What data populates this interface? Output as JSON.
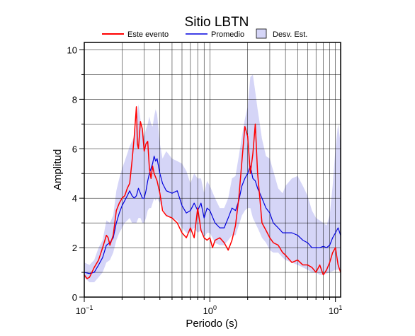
{
  "chart_data": {
    "type": "line",
    "title": "Sitio LBTN",
    "xlabel": "Periodo (s)",
    "ylabel": "Amplitud",
    "xscale": "log",
    "xlim": [
      0.1,
      11
    ],
    "ylim": [
      0,
      10.3
    ],
    "grid": true,
    "legend_position": "top",
    "x_ticks": [
      {
        "value": 0.1,
        "base": "10",
        "exp": "−1"
      },
      {
        "value": 1,
        "base": "10",
        "exp": "0"
      },
      {
        "value": 10,
        "base": "10",
        "exp": "1"
      }
    ],
    "y_ticks": [
      0,
      2,
      4,
      6,
      8,
      10
    ],
    "legend": {
      "event_label": "Este evento",
      "mean_label": "Promedio",
      "std_label": "Desv. Est."
    },
    "colors": {
      "event": "#ff0000",
      "mean": "#0000dd",
      "std_fill": "#d5d5f7"
    },
    "series": [
      {
        "name": "Este evento",
        "x": [
          0.1,
          0.105,
          0.11,
          0.115,
          0.12,
          0.13,
          0.14,
          0.15,
          0.155,
          0.16,
          0.17,
          0.18,
          0.19,
          0.2,
          0.21,
          0.22,
          0.23,
          0.24,
          0.25,
          0.26,
          0.265,
          0.27,
          0.28,
          0.29,
          0.3,
          0.31,
          0.32,
          0.33,
          0.34,
          0.35,
          0.36,
          0.38,
          0.4,
          0.42,
          0.45,
          0.5,
          0.55,
          0.6,
          0.65,
          0.7,
          0.75,
          0.8,
          0.85,
          0.9,
          0.95,
          1.0,
          1.05,
          1.1,
          1.2,
          1.3,
          1.4,
          1.5,
          1.6,
          1.7,
          1.8,
          1.9,
          2.0,
          2.1,
          2.2,
          2.3,
          2.4,
          2.5,
          2.6,
          2.8,
          3.0,
          3.2,
          3.5,
          3.8,
          4.0,
          4.5,
          5.0,
          5.5,
          6.0,
          6.5,
          7.0,
          7.5,
          8.0,
          8.5,
          9.0,
          9.5,
          10.0,
          10.5,
          11.0
        ],
        "y": [
          0.9,
          0.75,
          0.8,
          1.0,
          1.2,
          1.5,
          2.0,
          2.5,
          2.4,
          2.1,
          2.5,
          3.5,
          3.8,
          4.0,
          4.1,
          4.4,
          4.6,
          5.5,
          6.5,
          7.7,
          6.2,
          6.0,
          7.1,
          6.8,
          5.9,
          6.2,
          6.3,
          5.2,
          4.8,
          5.3,
          5.0,
          4.7,
          4.2,
          3.5,
          3.3,
          3.2,
          3.0,
          2.6,
          2.4,
          2.8,
          2.4,
          3.6,
          2.7,
          2.4,
          2.3,
          2.4,
          2.0,
          2.3,
          2.4,
          2.2,
          1.9,
          2.3,
          2.9,
          4.0,
          5.5,
          6.9,
          6.5,
          5.0,
          5.8,
          7.0,
          5.0,
          4.0,
          3.0,
          2.7,
          2.4,
          2.2,
          2.1,
          1.8,
          1.7,
          1.4,
          1.5,
          1.3,
          1.3,
          1.2,
          1.0,
          1.3,
          0.9,
          1.1,
          1.4,
          1.8,
          2.0,
          1.3,
          1.0
        ]
      },
      {
        "name": "Promedio",
        "x": [
          0.1,
          0.11,
          0.12,
          0.13,
          0.14,
          0.15,
          0.16,
          0.17,
          0.18,
          0.19,
          0.2,
          0.21,
          0.22,
          0.23,
          0.24,
          0.25,
          0.26,
          0.27,
          0.28,
          0.29,
          0.3,
          0.31,
          0.32,
          0.33,
          0.34,
          0.35,
          0.36,
          0.37,
          0.38,
          0.4,
          0.42,
          0.45,
          0.5,
          0.55,
          0.6,
          0.65,
          0.7,
          0.75,
          0.8,
          0.85,
          0.9,
          0.95,
          1.0,
          1.1,
          1.2,
          1.3,
          1.4,
          1.5,
          1.6,
          1.7,
          1.8,
          1.9,
          2.0,
          2.1,
          2.2,
          2.3,
          2.4,
          2.5,
          2.6,
          2.8,
          3.0,
          3.2,
          3.5,
          3.8,
          4.0,
          4.5,
          5.0,
          5.5,
          6.0,
          6.5,
          7.0,
          7.5,
          8.0,
          8.5,
          9.0,
          9.5,
          10.0,
          10.5,
          11.0
        ],
        "y": [
          1.0,
          0.95,
          1.0,
          1.3,
          1.6,
          2.1,
          2.2,
          2.4,
          3.0,
          3.4,
          3.7,
          3.9,
          4.1,
          4.3,
          4.1,
          4.0,
          4.1,
          4.4,
          4.2,
          4.0,
          4.0,
          4.3,
          4.7,
          5.0,
          5.2,
          5.4,
          5.7,
          5.5,
          5.6,
          5.0,
          4.6,
          4.3,
          4.2,
          4.3,
          3.7,
          3.4,
          3.5,
          3.8,
          3.5,
          3.8,
          3.2,
          3.6,
          3.5,
          3.0,
          2.8,
          2.8,
          3.2,
          3.6,
          3.5,
          3.9,
          4.5,
          4.8,
          5.0,
          5.3,
          4.8,
          4.7,
          4.4,
          4.2,
          4.0,
          3.6,
          3.4,
          3.0,
          2.8,
          2.6,
          2.6,
          2.6,
          2.5,
          2.3,
          2.2,
          2.0,
          2.0,
          2.0,
          2.05,
          2.0,
          2.1,
          2.4,
          2.6,
          2.8,
          2.5
        ]
      },
      {
        "name": "Desv. Est.",
        "x": [
          0.1,
          0.11,
          0.12,
          0.13,
          0.14,
          0.15,
          0.16,
          0.17,
          0.18,
          0.19,
          0.2,
          0.21,
          0.22,
          0.23,
          0.24,
          0.25,
          0.26,
          0.27,
          0.28,
          0.29,
          0.3,
          0.31,
          0.32,
          0.33,
          0.34,
          0.35,
          0.36,
          0.37,
          0.38,
          0.4,
          0.42,
          0.45,
          0.5,
          0.55,
          0.6,
          0.65,
          0.7,
          0.75,
          0.8,
          0.85,
          0.9,
          0.95,
          1.0,
          1.1,
          1.2,
          1.3,
          1.4,
          1.5,
          1.6,
          1.7,
          1.8,
          1.9,
          2.0,
          2.1,
          2.2,
          2.3,
          2.4,
          2.5,
          2.6,
          2.8,
          3.0,
          3.2,
          3.5,
          3.8,
          4.0,
          4.5,
          5.0,
          5.5,
          6.0,
          6.5,
          7.0,
          7.5,
          8.0,
          8.5,
          9.0,
          9.5,
          10.0,
          10.5,
          11.0
        ],
        "upper": [
          1.4,
          1.3,
          1.5,
          2.0,
          2.3,
          3.1,
          3.0,
          3.3,
          4.3,
          4.8,
          5.2,
          5.5,
          5.8,
          6.1,
          6.3,
          6.5,
          7.0,
          7.8,
          7.2,
          6.6,
          6.5,
          6.8,
          7.0,
          7.3,
          7.0,
          6.9,
          7.3,
          7.6,
          7.4,
          6.2,
          5.6,
          5.9,
          5.6,
          5.5,
          5.4,
          5.1,
          4.6,
          5.0,
          4.8,
          4.8,
          4.2,
          4.7,
          4.5,
          4.0,
          3.6,
          3.6,
          4.0,
          4.8,
          4.9,
          5.7,
          6.5,
          7.2,
          7.7,
          8.9,
          9.0,
          8.3,
          7.6,
          7.0,
          6.4,
          5.7,
          5.6,
          5.1,
          4.4,
          4.2,
          4.5,
          4.8,
          4.9,
          4.5,
          4.1,
          3.5,
          3.2,
          3.1,
          3.0,
          2.9,
          3.3,
          4.5,
          6.0,
          7.0,
          6.2
        ],
        "lower": [
          0.8,
          0.6,
          0.6,
          0.8,
          1.0,
          1.4,
          1.5,
          1.8,
          2.3,
          2.6,
          2.8,
          3.0,
          3.1,
          3.2,
          3.0,
          3.0,
          3.0,
          3.2,
          3.2,
          3.0,
          3.0,
          3.2,
          3.5,
          3.6,
          3.6,
          3.8,
          4.0,
          3.9,
          4.0,
          3.8,
          3.6,
          3.3,
          3.2,
          3.1,
          2.8,
          2.6,
          2.6,
          2.8,
          2.6,
          2.7,
          2.4,
          2.6,
          2.6,
          2.2,
          2.1,
          2.1,
          2.3,
          2.5,
          2.5,
          2.9,
          3.3,
          3.5,
          3.6,
          3.6,
          3.2,
          3.0,
          2.8,
          2.6,
          2.4,
          2.2,
          1.9,
          1.8,
          1.8,
          1.6,
          1.5,
          1.4,
          1.3,
          1.2,
          1.1,
          1.0,
          1.0,
          0.9,
          0.9,
          0.95,
          1.0,
          1.05,
          1.1,
          1.1,
          1.1
        ]
      }
    ]
  }
}
